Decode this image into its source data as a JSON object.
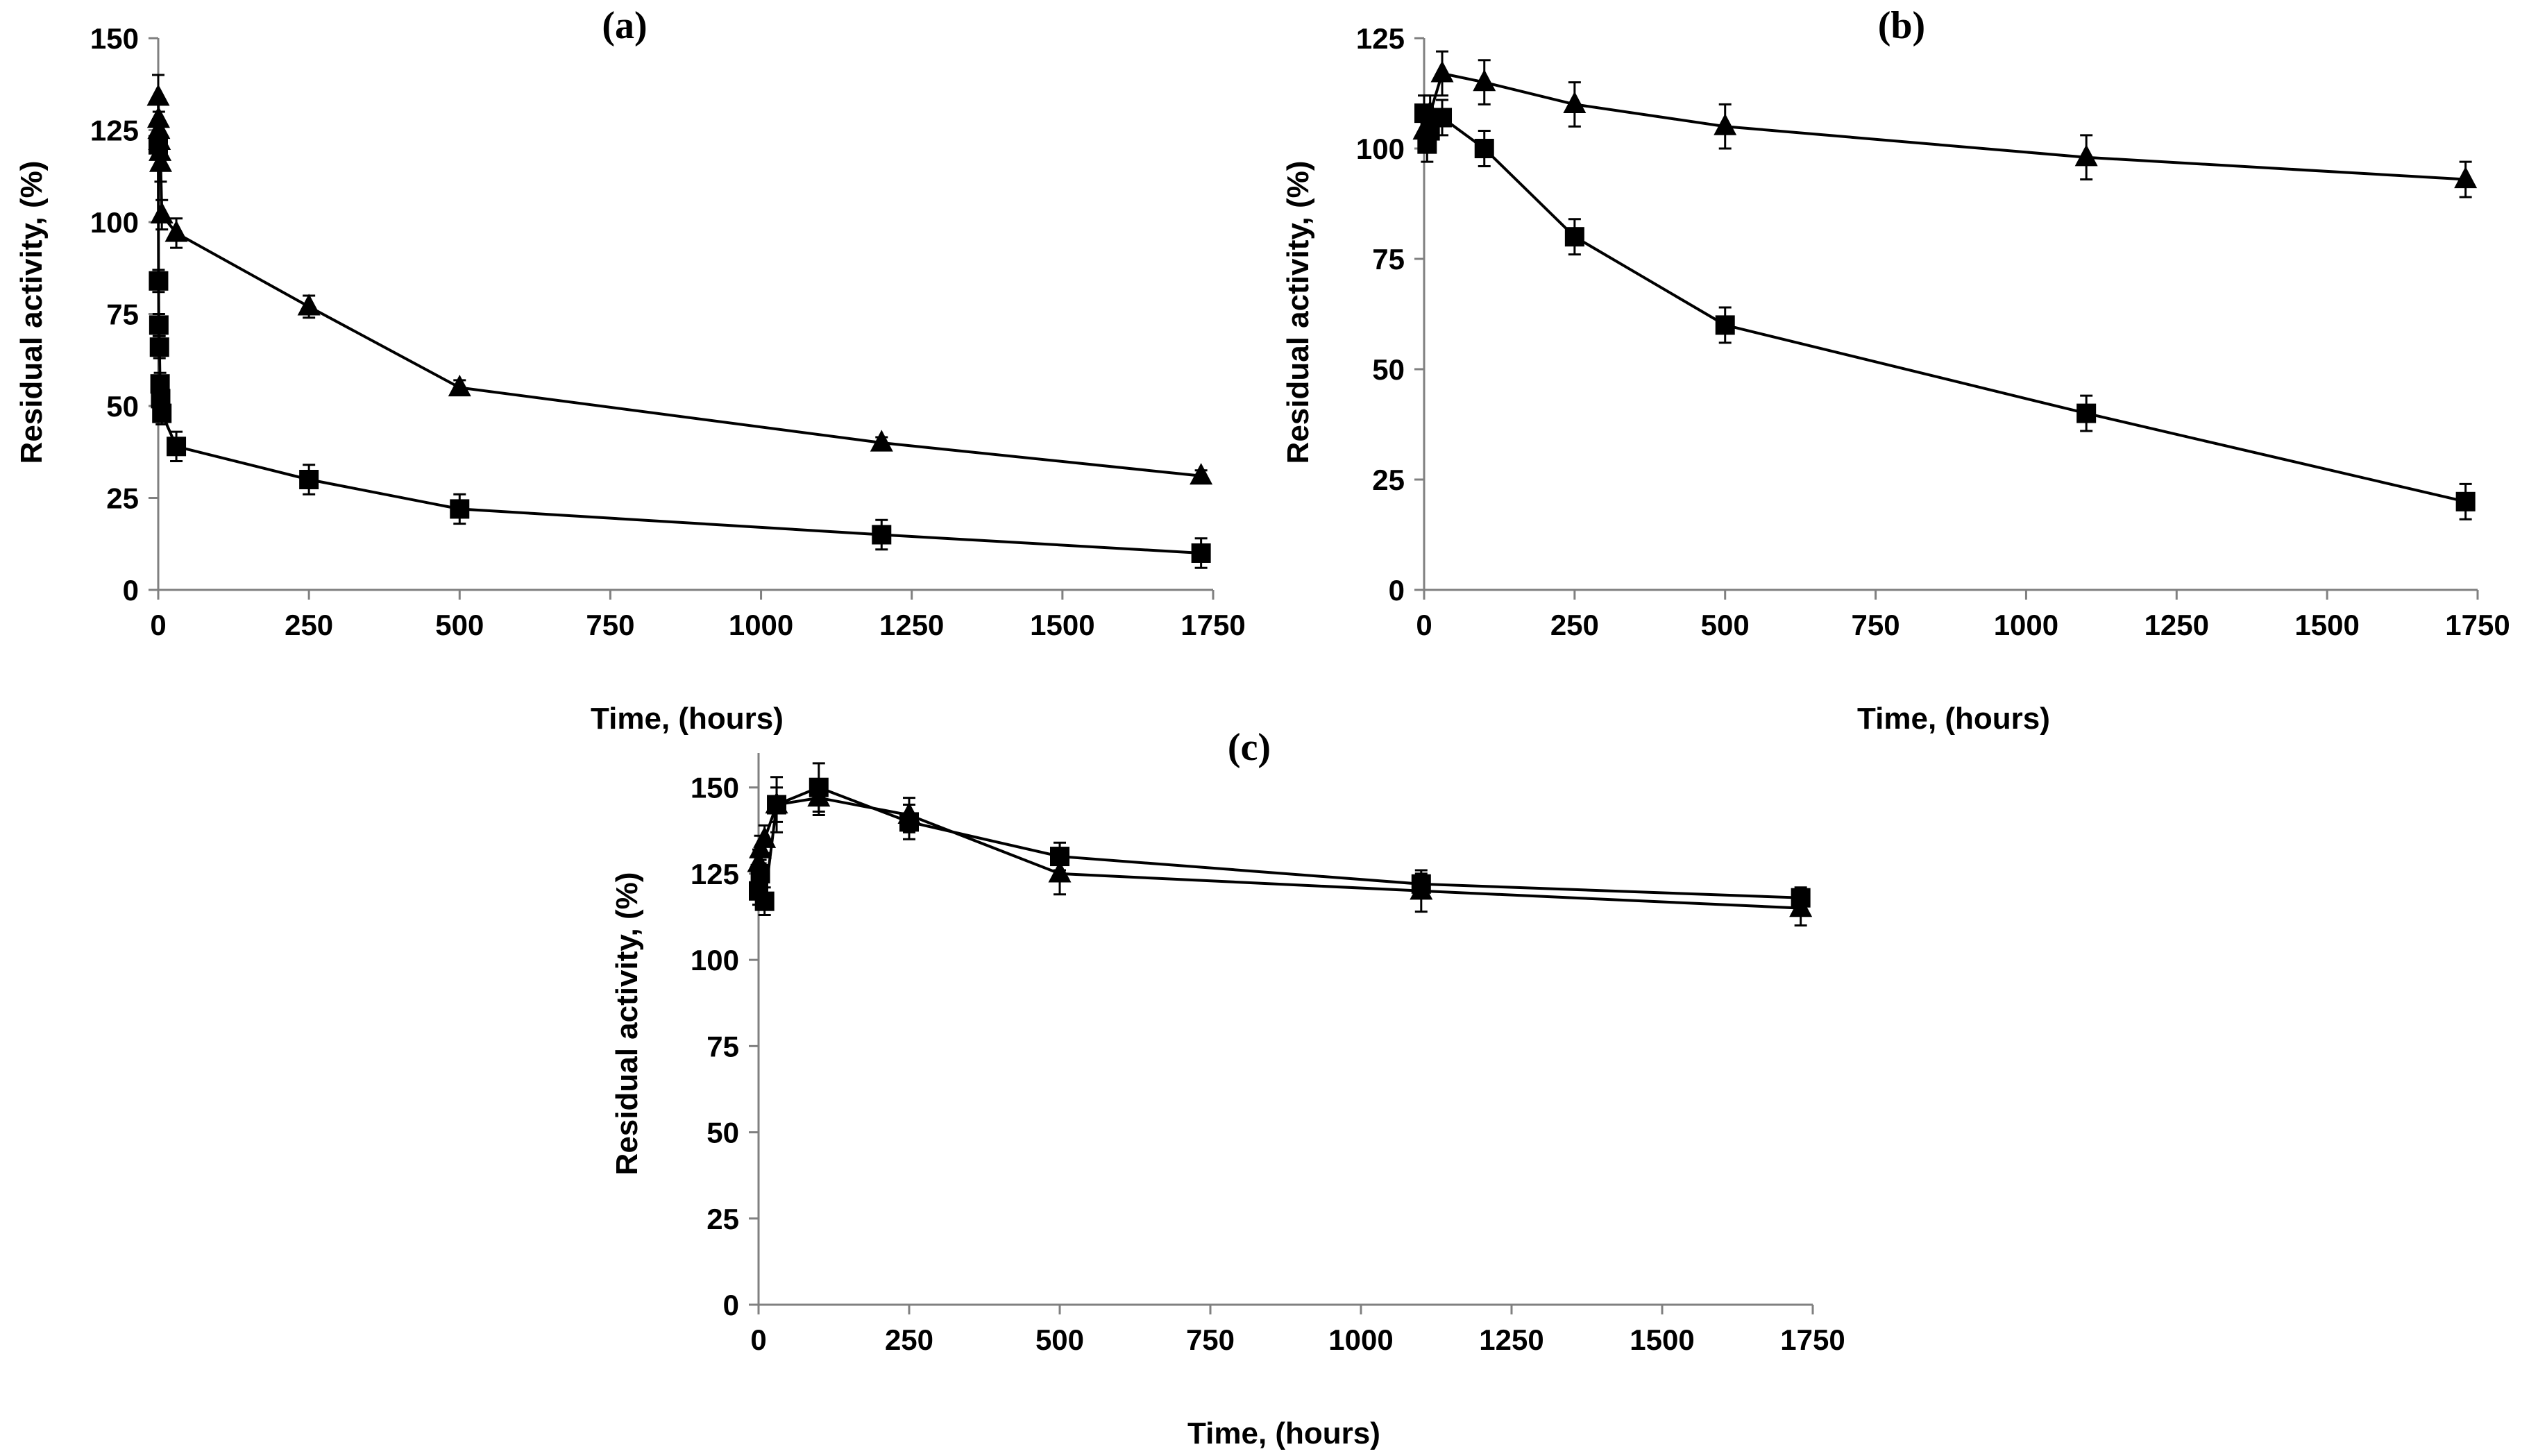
{
  "chart_data": [
    {
      "type": "line",
      "title": "(a)",
      "xlabel": "Time, (hours)",
      "ylabel": "Residual activity, (%)",
      "xlim": [
        0,
        1750
      ],
      "ylim": [
        0,
        150
      ],
      "xticks": [
        "0",
        "250",
        "500",
        "750",
        "1000",
        "1250",
        "1500",
        "1750"
      ],
      "yticks": [
        "0",
        "25",
        "50",
        "75",
        "100",
        "125",
        "150"
      ],
      "grid": false,
      "series": [
        {
          "name": "triangle",
          "marker": "triangle",
          "x": [
            0,
            0.5,
            1,
            2,
            3,
            4,
            6,
            30,
            250,
            500,
            1200,
            1730
          ],
          "y": [
            134,
            128,
            125,
            122,
            119,
            116,
            102,
            97,
            77,
            55,
            40,
            31
          ],
          "err": [
            6,
            5,
            5,
            5,
            5,
            5,
            4,
            4,
            3,
            2,
            1.5,
            1.5
          ]
        },
        {
          "name": "square",
          "marker": "square",
          "x": [
            0,
            0.5,
            1,
            2,
            3,
            4,
            6,
            30,
            250,
            500,
            1200,
            1730
          ],
          "y": [
            121,
            84,
            72,
            66,
            56,
            52,
            48,
            39,
            30,
            22,
            15,
            10
          ],
          "err": [
            3,
            3,
            3,
            3,
            3,
            3,
            3,
            4,
            4,
            4,
            4,
            4
          ]
        }
      ]
    },
    {
      "type": "line",
      "title": "(b)",
      "xlabel": "Time, (hours)",
      "ylabel": "Residual activity, (%)",
      "xlim": [
        0,
        1750
      ],
      "ylim": [
        0,
        125
      ],
      "xticks": [
        "0",
        "250",
        "500",
        "750",
        "1000",
        "1250",
        "1500",
        "1750"
      ],
      "yticks": [
        "0",
        "25",
        "50",
        "75",
        "100",
        "125"
      ],
      "grid": false,
      "series": [
        {
          "name": "triangle",
          "marker": "triangle",
          "x": [
            0,
            10,
            30,
            100,
            250,
            500,
            1100,
            1730
          ],
          "y": [
            104,
            108,
            117,
            115,
            110,
            105,
            98,
            93
          ],
          "err": [
            4,
            4,
            5,
            5,
            5,
            5,
            5,
            4
          ]
        },
        {
          "name": "square",
          "marker": "square",
          "x": [
            0,
            5,
            10,
            30,
            100,
            250,
            500,
            1100,
            1730
          ],
          "y": [
            108,
            101,
            104,
            107,
            100,
            80,
            60,
            40,
            20
          ],
          "err": [
            4,
            4,
            4,
            4,
            4,
            4,
            4,
            4,
            4
          ]
        }
      ]
    },
    {
      "type": "line",
      "title": "(c)",
      "xlabel": "Time, (hours)",
      "ylabel": "Residual activity, (%)",
      "xlim": [
        0,
        1750
      ],
      "ylim": [
        0,
        160
      ],
      "xticks": [
        "0",
        "250",
        "500",
        "750",
        "1000",
        "1250",
        "1500",
        "1750"
      ],
      "yticks": [
        "0",
        "25",
        "50",
        "75",
        "100",
        "125",
        "150"
      ],
      "grid": false,
      "series": [
        {
          "name": "triangle",
          "marker": "triangle",
          "x": [
            0,
            3,
            10,
            30,
            100,
            250,
            500,
            1100,
            1730
          ],
          "y": [
            128,
            132,
            135,
            145,
            147,
            142,
            125,
            120,
            115
          ],
          "err": [
            4,
            4,
            4,
            5,
            5,
            5,
            6,
            6,
            5
          ]
        },
        {
          "name": "square",
          "marker": "square",
          "x": [
            0,
            3,
            10,
            30,
            100,
            250,
            500,
            1100,
            1730
          ],
          "y": [
            120,
            125,
            117,
            145,
            150,
            140,
            130,
            122,
            118
          ],
          "err": [
            4,
            4,
            4,
            8,
            7,
            5,
            4,
            3,
            3
          ]
        }
      ]
    }
  ]
}
